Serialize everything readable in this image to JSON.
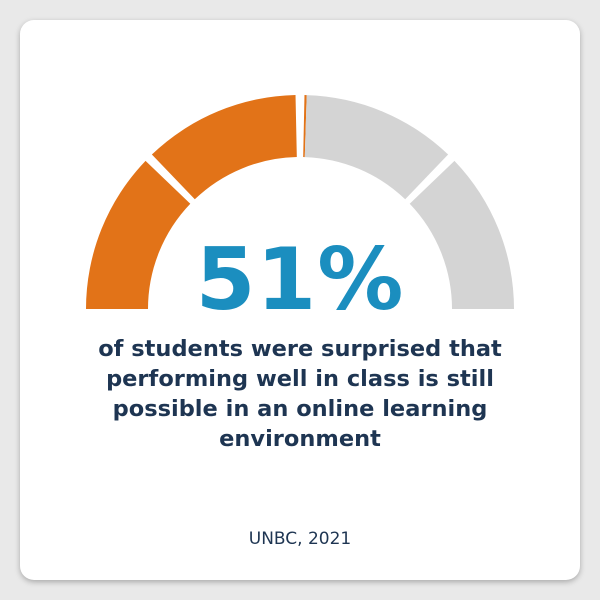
{
  "chart_data": {
    "type": "gauge",
    "value": 51,
    "max": 100,
    "segments": 4,
    "value_label": "51%",
    "caption": "of students were surprised that performing well in class is still possible in an online learning environment",
    "source": "UNBC, 2021"
  },
  "colors": {
    "filled": "#e27318",
    "empty": "#d4d4d4",
    "value_text": "#1b8ebf",
    "caption_text": "#1e3552",
    "source_text": "#1e3552"
  }
}
